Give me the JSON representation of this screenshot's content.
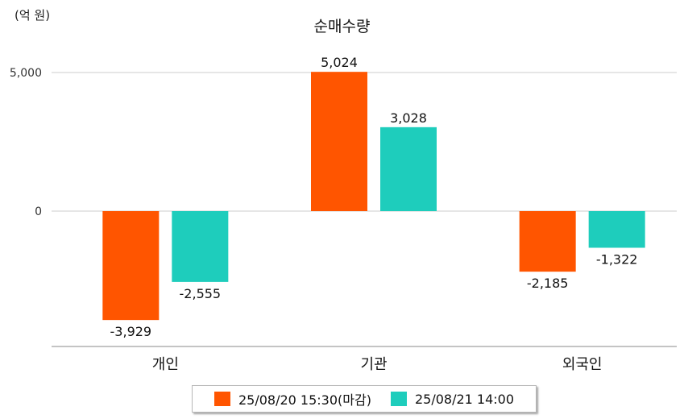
{
  "unit_label": "(억 원)",
  "chart_data": {
    "type": "bar",
    "title": "순매수량",
    "categories": [
      "개인",
      "기관",
      "외국인"
    ],
    "ylim": [
      -4900,
      6000
    ],
    "y_ticks": [
      {
        "value": 5000,
        "label": "5,000"
      },
      {
        "value": 0,
        "label": "0"
      }
    ],
    "grid": true,
    "legend_position": "bottom",
    "series": [
      {
        "name": "25/08/20 15:30(마감)",
        "color": "#ff5500",
        "values": [
          -3929,
          5024,
          -2185
        ],
        "labels": [
          "-3,929",
          "5,024",
          "-2,185"
        ]
      },
      {
        "name": "25/08/21 14:00",
        "color": "#1ecdbc",
        "values": [
          -2555,
          3028,
          -1322
        ],
        "labels": [
          "-2,555",
          "3,028",
          "-1,322"
        ]
      }
    ]
  }
}
